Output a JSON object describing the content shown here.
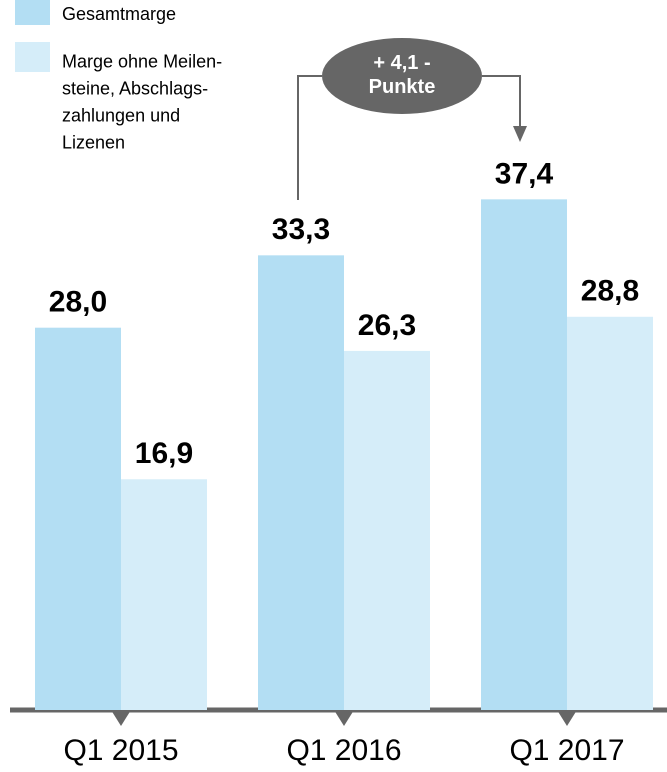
{
  "chart_data": {
    "type": "bar",
    "categories": [
      "Q1 2015",
      "Q1 2016",
      "Q1 2017"
    ],
    "series": [
      {
        "name": "Gesamtmarge",
        "color": "#b3def3",
        "values": [
          28.0,
          33.3,
          37.4
        ],
        "value_labels": [
          "28,0",
          "33,3",
          "37,4"
        ]
      },
      {
        "name": "Marge ohne Meilen-\nsteine, Abschlags-\nzahlungen und\nLizenen",
        "color": "#d5edf9",
        "values": [
          16.9,
          26.3,
          28.8
        ],
        "value_labels": [
          "16,9",
          "26,3",
          "28,8"
        ]
      }
    ],
    "ylim": [
      0,
      52
    ],
    "annotation": "+ 4,1 -\nPunkte"
  }
}
